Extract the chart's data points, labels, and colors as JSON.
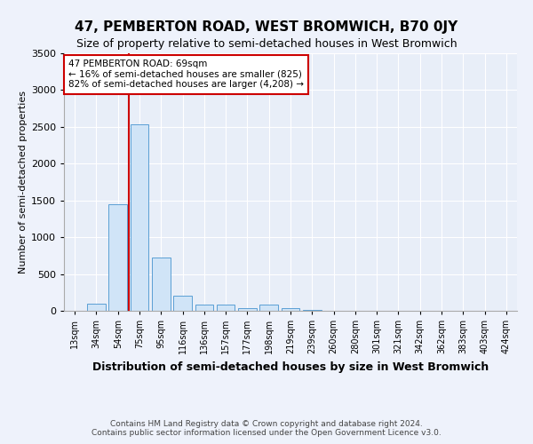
{
  "title": "47, PEMBERTON ROAD, WEST BROMWICH, B70 0JY",
  "subtitle": "Size of property relative to semi-detached houses in West Bromwich",
  "xlabel": "Distribution of semi-detached houses by size in West Bromwich",
  "ylabel": "Number of semi-detached properties",
  "footer_line1": "Contains HM Land Registry data © Crown copyright and database right 2024.",
  "footer_line2": "Contains public sector information licensed under the Open Government Licence v3.0.",
  "annotation_line1": "47 PEMBERTON ROAD: 69sqm",
  "annotation_line2": "← 16% of semi-detached houses are smaller (825)",
  "annotation_line3": "82% of semi-detached houses are larger (4,208) →",
  "categories": [
    "13sqm",
    "34sqm",
    "54sqm",
    "75sqm",
    "95sqm",
    "116sqm",
    "136sqm",
    "157sqm",
    "177sqm",
    "198sqm",
    "219sqm",
    "239sqm",
    "260sqm",
    "280sqm",
    "301sqm",
    "321sqm",
    "342sqm",
    "362sqm",
    "383sqm",
    "403sqm",
    "424sqm"
  ],
  "values": [
    5,
    100,
    1450,
    2530,
    720,
    210,
    90,
    90,
    40,
    90,
    40,
    10,
    5,
    2,
    1,
    0,
    0,
    0,
    0,
    0,
    0
  ],
  "bar_color": "#d0e4f7",
  "bar_edge_color": "#5b9fd4",
  "line_color": "#cc0000",
  "annotation_box_facecolor": "#ffffff",
  "annotation_box_edgecolor": "#cc0000",
  "ylim": [
    0,
    3500
  ],
  "yticks": [
    0,
    500,
    1000,
    1500,
    2000,
    2500,
    3000,
    3500
  ],
  "background_color": "#eef2fb",
  "plot_bg_color": "#e8eef8",
  "title_fontsize": 11,
  "subtitle_fontsize": 9,
  "xlabel_fontsize": 9,
  "ylabel_fontsize": 8,
  "tick_fontsize": 7,
  "footer_fontsize": 6.5,
  "annotation_fontsize": 7.5,
  "property_line_x": 2.5
}
